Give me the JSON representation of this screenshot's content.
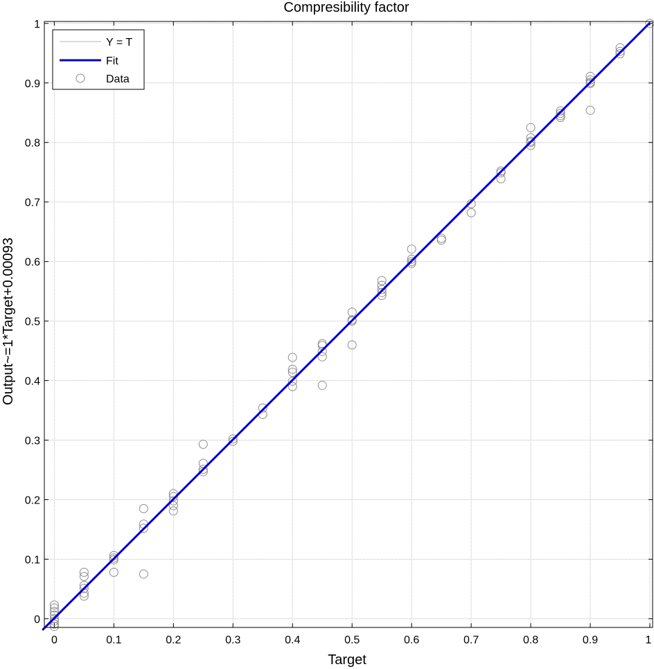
{
  "chart_data": {
    "type": "scatter",
    "title": "Compresibility factor",
    "xlabel": "Target",
    "ylabel": "Output~=1*Target+0.00093",
    "xlim": [
      -0.02,
      1.0
    ],
    "ylim": [
      -0.015,
      1.0
    ],
    "x_ticks": [
      "0",
      "0.1",
      "0.2",
      "0.3",
      "0.4",
      "0.5",
      "0.6",
      "0.7",
      "0.8",
      "0.9",
      "1"
    ],
    "y_ticks": [
      "0",
      "0.1",
      "0.2",
      "0.3",
      "0.4",
      "0.5",
      "0.6",
      "0.7",
      "0.8",
      "0.9",
      "1"
    ],
    "grid": true,
    "legend": {
      "position": "top-left",
      "entries": [
        "Y = T",
        "Fit",
        "Data"
      ]
    },
    "colors": {
      "ideal": "#b4b4b4",
      "fit": "#0000cc",
      "data": "#8c8c8c",
      "grid": "#bdbdbd"
    },
    "series": [
      {
        "name": "Y = T",
        "kind": "line",
        "x": [
          -0.02,
          1.0
        ],
        "y": [
          -0.02,
          1.0
        ]
      },
      {
        "name": "Fit",
        "kind": "line",
        "slope": 1,
        "intercept": 0.00093
      },
      {
        "name": "Data",
        "kind": "scatter",
        "points": [
          [
            0,
            0.023
          ],
          [
            0,
            0.018
          ],
          [
            0,
            0.012
          ],
          [
            0,
            0.006
          ],
          [
            0,
            0.0
          ],
          [
            0,
            -0.004
          ],
          [
            0,
            -0.009
          ],
          [
            0,
            -0.013
          ],
          [
            0.05,
            0.078
          ],
          [
            0.05,
            0.071
          ],
          [
            0.05,
            0.056
          ],
          [
            0.05,
            0.051
          ],
          [
            0.05,
            0.043
          ],
          [
            0.05,
            0.038
          ],
          [
            0.1,
            0.106
          ],
          [
            0.1,
            0.102
          ],
          [
            0.1,
            0.099
          ],
          [
            0.1,
            0.078
          ],
          [
            0.15,
            0.185
          ],
          [
            0.15,
            0.159
          ],
          [
            0.15,
            0.152
          ],
          [
            0.15,
            0.075
          ],
          [
            0.2,
            0.21
          ],
          [
            0.2,
            0.205
          ],
          [
            0.2,
            0.198
          ],
          [
            0.2,
            0.19
          ],
          [
            0.2,
            0.181
          ],
          [
            0.25,
            0.293
          ],
          [
            0.25,
            0.261
          ],
          [
            0.25,
            0.251
          ],
          [
            0.25,
            0.247
          ],
          [
            0.3,
            0.302
          ],
          [
            0.3,
            0.298
          ],
          [
            0.35,
            0.354
          ],
          [
            0.35,
            0.343
          ],
          [
            0.4,
            0.439
          ],
          [
            0.4,
            0.419
          ],
          [
            0.4,
            0.414
          ],
          [
            0.4,
            0.399
          ],
          [
            0.4,
            0.39
          ],
          [
            0.45,
            0.462
          ],
          [
            0.45,
            0.459
          ],
          [
            0.45,
            0.449
          ],
          [
            0.45,
            0.44
          ],
          [
            0.45,
            0.392
          ],
          [
            0.5,
            0.515
          ],
          [
            0.5,
            0.502
          ],
          [
            0.5,
            0.5
          ],
          [
            0.5,
            0.46
          ],
          [
            0.55,
            0.568
          ],
          [
            0.55,
            0.56
          ],
          [
            0.55,
            0.553
          ],
          [
            0.55,
            0.548
          ],
          [
            0.55,
            0.543
          ],
          [
            0.6,
            0.621
          ],
          [
            0.6,
            0.604
          ],
          [
            0.6,
            0.6
          ],
          [
            0.6,
            0.597
          ],
          [
            0.65,
            0.639
          ],
          [
            0.65,
            0.636
          ],
          [
            0.7,
            0.697
          ],
          [
            0.7,
            0.682
          ],
          [
            0.75,
            0.752
          ],
          [
            0.75,
            0.749
          ],
          [
            0.75,
            0.739
          ],
          [
            0.8,
            0.825
          ],
          [
            0.8,
            0.808
          ],
          [
            0.8,
            0.802
          ],
          [
            0.8,
            0.8
          ],
          [
            0.8,
            0.795
          ],
          [
            0.85,
            0.853
          ],
          [
            0.85,
            0.849
          ],
          [
            0.85,
            0.845
          ],
          [
            0.85,
            0.842
          ],
          [
            0.9,
            0.911
          ],
          [
            0.9,
            0.905
          ],
          [
            0.9,
            0.901
          ],
          [
            0.9,
            0.899
          ],
          [
            0.9,
            0.854
          ],
          [
            0.95,
            0.959
          ],
          [
            0.95,
            0.953
          ],
          [
            0.95,
            0.949
          ],
          [
            1.0,
            1.0
          ]
        ]
      }
    ]
  }
}
